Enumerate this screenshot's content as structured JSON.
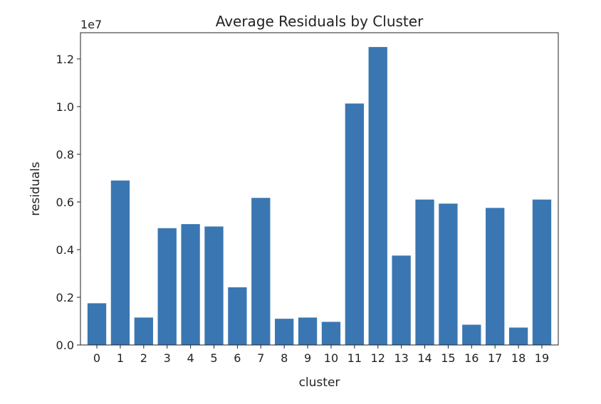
{
  "chart_data": {
    "type": "bar",
    "title": "Average Residuals by Cluster",
    "xlabel": "cluster",
    "ylabel": "residuals",
    "y_offset_label": "1e7",
    "scale": 10000000,
    "categories": [
      "0",
      "1",
      "2",
      "3",
      "4",
      "5",
      "6",
      "7",
      "8",
      "9",
      "10",
      "11",
      "12",
      "13",
      "14",
      "15",
      "16",
      "17",
      "18",
      "19"
    ],
    "values": [
      1750000,
      6900000,
      1150000,
      4900000,
      5070000,
      4970000,
      2420000,
      6170000,
      1100000,
      1150000,
      970000,
      10130000,
      12500000,
      3750000,
      6100000,
      5930000,
      850000,
      5750000,
      730000,
      6100000
    ],
    "ylim": [
      0,
      13100000
    ],
    "yticks": [
      0,
      2000000,
      4000000,
      6000000,
      8000000,
      10000000,
      12000000
    ],
    "ytick_labels": [
      "0.0",
      "0.2",
      "0.4",
      "0.6",
      "0.8",
      "1.0",
      "1.2"
    ],
    "grid": false,
    "bar_color": "#3a77b2"
  }
}
